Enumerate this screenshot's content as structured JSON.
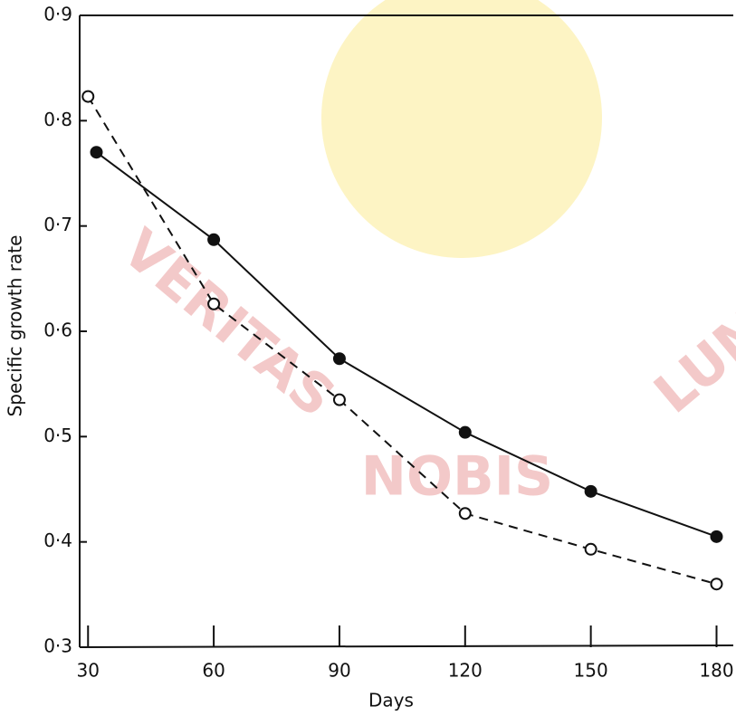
{
  "chart_data": {
    "type": "line",
    "xlabel": "Days",
    "ylabel": "Specific growth rate",
    "watermark": [
      "VERITAS",
      "NOBIS",
      "LUM"
    ],
    "xlim": [
      28,
      184
    ],
    "ylim": [
      0.3,
      0.9
    ],
    "xticks": [
      30,
      60,
      90,
      120,
      150,
      180
    ],
    "yticks": [
      {
        "value": 0.3,
        "label": "0·3"
      },
      {
        "value": 0.4,
        "label": "0·4"
      },
      {
        "value": 0.5,
        "label": "0·5"
      },
      {
        "value": 0.6,
        "label": "0·6"
      },
      {
        "value": 0.7,
        "label": "0·7"
      },
      {
        "value": 0.8,
        "label": "0·8"
      },
      {
        "value": 0.9,
        "label": "0·9"
      }
    ],
    "series": [
      {
        "color": "#111111",
        "style": "solid",
        "marker": "filled",
        "x": [
          32,
          60,
          90,
          120,
          150,
          180
        ],
        "values": [
          0.77,
          0.687,
          0.574,
          0.504,
          0.448,
          0.405
        ]
      },
      {
        "color": "#111111",
        "style": "dashed",
        "marker": "open",
        "x": [
          30,
          60,
          90,
          120,
          150,
          180
        ],
        "values": [
          0.823,
          0.626,
          0.535,
          0.427,
          0.393,
          0.36
        ]
      }
    ]
  }
}
